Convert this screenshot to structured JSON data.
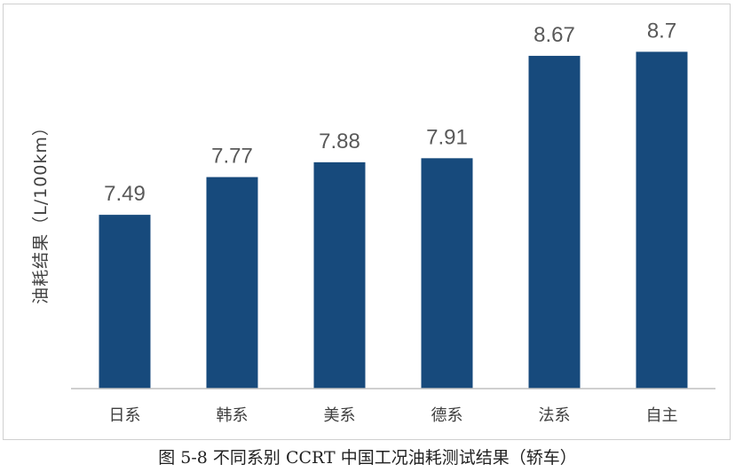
{
  "caption": "图 5-8 不同系别 CCRT 中国工况油耗测试结果（轿车）",
  "colors": {
    "bar": "#174a7c",
    "axis": "#bfbfbf",
    "label": "#595959"
  },
  "chart_data": {
    "type": "bar",
    "title": "",
    "xlabel": "",
    "ylabel": "油耗结果（L/100km）",
    "categories": [
      "日系",
      "韩系",
      "美系",
      "德系",
      "法系",
      "自主"
    ],
    "values": [
      7.49,
      7.77,
      7.88,
      7.91,
      8.67,
      8.7
    ],
    "value_labels": [
      "7.49",
      "7.77",
      "7.88",
      "7.91",
      "8.67",
      "8.7"
    ],
    "ylim": [
      6.2,
      8.9
    ],
    "grid": false,
    "legend": "none"
  }
}
